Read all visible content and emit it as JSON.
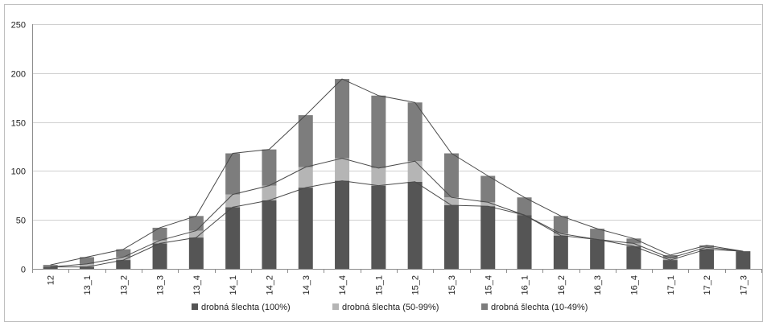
{
  "chart_data": {
    "type": "bar",
    "stacked": true,
    "with_connector_lines": true,
    "categories": [
      "12",
      "13_1",
      "13_2",
      "13_3",
      "13_4",
      "14_1",
      "14_2",
      "14_3",
      "14_4",
      "15_1",
      "15_2",
      "15_3",
      "15_4",
      "16_1",
      "16_2",
      "16_3",
      "16_4",
      "17_1",
      "17_2",
      "17_3"
    ],
    "series": [
      {
        "name": "drobná šlechta (100%)",
        "color": "#555555",
        "values": [
          2,
          2,
          9,
          26,
          32,
          63,
          70,
          83,
          90,
          85,
          89,
          65,
          64,
          55,
          34,
          30,
          23,
          9,
          20,
          18
        ]
      },
      {
        "name": "drobná šlechta (50-99%)",
        "color": "#b5b5b5",
        "values": [
          0,
          3,
          3,
          3,
          7,
          13,
          15,
          21,
          23,
          18,
          21,
          8,
          4,
          0,
          2,
          0,
          3,
          2,
          2,
          0
        ]
      },
      {
        "name": "drobná šlechta (10-49%)",
        "color": "#7d7d7d",
        "values": [
          2,
          7,
          8,
          13,
          15,
          42,
          37,
          53,
          81,
          74,
          60,
          45,
          27,
          18,
          18,
          11,
          5,
          3,
          2,
          0
        ]
      }
    ],
    "yticks": [
      "0",
      "50",
      "100",
      "150",
      "200",
      "250"
    ],
    "ylim": [
      0,
      250
    ],
    "legend_position": "bottom",
    "grid": "horizontal"
  }
}
